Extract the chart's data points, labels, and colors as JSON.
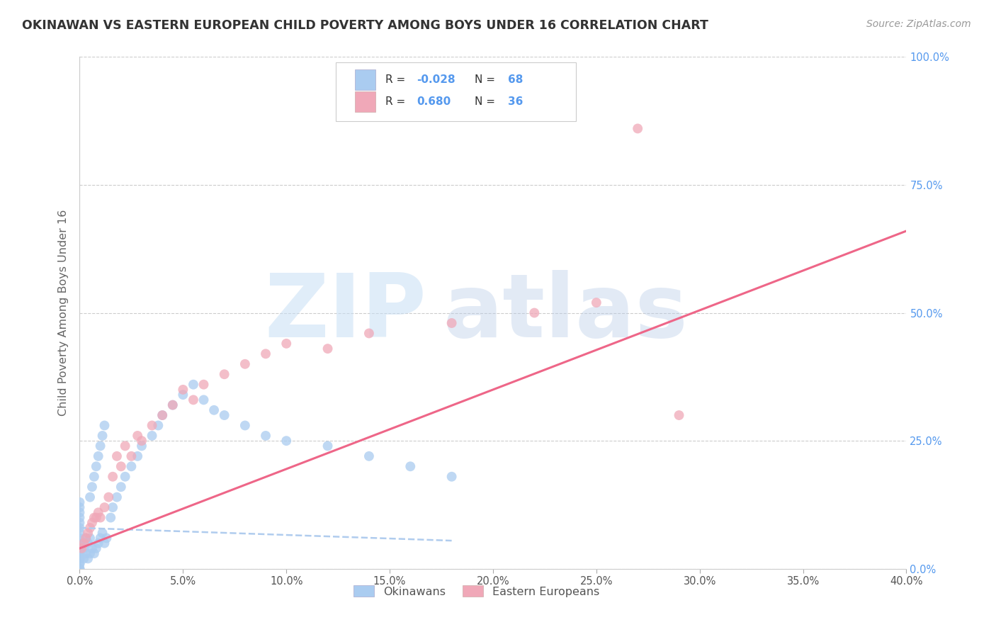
{
  "title": "OKINAWAN VS EASTERN EUROPEAN CHILD POVERTY AMONG BOYS UNDER 16 CORRELATION CHART",
  "source": "Source: ZipAtlas.com",
  "ylabel": "Child Poverty Among Boys Under 16",
  "watermark_zip": "ZIP",
  "watermark_atlas": "atlas",
  "color_okinawan": "#aaccf0",
  "color_eastern": "#f0a8b8",
  "color_blue_text": "#5599ee",
  "color_trendline_blue": "#b0ccee",
  "color_trendline_pink": "#ee6688",
  "xlim": [
    0.0,
    0.4
  ],
  "ylim": [
    0.0,
    1.0
  ],
  "xticks": [
    0.0,
    0.05,
    0.1,
    0.15,
    0.2,
    0.25,
    0.3,
    0.35,
    0.4
  ],
  "yticks_right": [
    0.0,
    0.25,
    0.5,
    0.75,
    1.0
  ],
  "okinawan_x": [
    0.0,
    0.0,
    0.0,
    0.0,
    0.0,
    0.0,
    0.0,
    0.0,
    0.0,
    0.0,
    0.0,
    0.0,
    0.0,
    0.0,
    0.0,
    0.0,
    0.0,
    0.0,
    0.0,
    0.0,
    0.002,
    0.002,
    0.003,
    0.003,
    0.004,
    0.004,
    0.005,
    0.005,
    0.006,
    0.007,
    0.008,
    0.009,
    0.01,
    0.011,
    0.012,
    0.013,
    0.005,
    0.006,
    0.007,
    0.008,
    0.009,
    0.01,
    0.011,
    0.012,
    0.015,
    0.016,
    0.018,
    0.02,
    0.022,
    0.025,
    0.028,
    0.03,
    0.035,
    0.038,
    0.04,
    0.045,
    0.05,
    0.055,
    0.06,
    0.065,
    0.07,
    0.08,
    0.09,
    0.1,
    0.12,
    0.14,
    0.16,
    0.18
  ],
  "okinawan_y": [
    0.0,
    0.0,
    0.01,
    0.01,
    0.02,
    0.02,
    0.03,
    0.03,
    0.04,
    0.04,
    0.05,
    0.05,
    0.06,
    0.07,
    0.08,
    0.09,
    0.1,
    0.11,
    0.12,
    0.13,
    0.02,
    0.04,
    0.03,
    0.06,
    0.02,
    0.05,
    0.03,
    0.06,
    0.04,
    0.03,
    0.04,
    0.05,
    0.06,
    0.07,
    0.05,
    0.06,
    0.14,
    0.16,
    0.18,
    0.2,
    0.22,
    0.24,
    0.26,
    0.28,
    0.1,
    0.12,
    0.14,
    0.16,
    0.18,
    0.2,
    0.22,
    0.24,
    0.26,
    0.28,
    0.3,
    0.32,
    0.34,
    0.36,
    0.33,
    0.31,
    0.3,
    0.28,
    0.26,
    0.25,
    0.24,
    0.22,
    0.2,
    0.18
  ],
  "eastern_x": [
    0.001,
    0.002,
    0.003,
    0.004,
    0.005,
    0.006,
    0.007,
    0.008,
    0.009,
    0.01,
    0.012,
    0.014,
    0.016,
    0.018,
    0.02,
    0.022,
    0.025,
    0.028,
    0.03,
    0.035,
    0.04,
    0.045,
    0.05,
    0.055,
    0.06,
    0.07,
    0.08,
    0.09,
    0.1,
    0.12,
    0.14,
    0.18,
    0.22,
    0.25,
    0.27,
    0.29
  ],
  "eastern_y": [
    0.04,
    0.05,
    0.06,
    0.07,
    0.08,
    0.09,
    0.1,
    0.1,
    0.11,
    0.1,
    0.12,
    0.14,
    0.18,
    0.22,
    0.2,
    0.24,
    0.22,
    0.26,
    0.25,
    0.28,
    0.3,
    0.32,
    0.35,
    0.33,
    0.36,
    0.38,
    0.4,
    0.42,
    0.44,
    0.43,
    0.46,
    0.48,
    0.5,
    0.52,
    0.86,
    0.3
  ],
  "blue_trendline_x": [
    0.0,
    0.18
  ],
  "blue_trendline_y": [
    0.08,
    0.055
  ],
  "pink_trendline_x": [
    0.0,
    0.4
  ],
  "pink_trendline_y": [
    0.04,
    0.66
  ]
}
